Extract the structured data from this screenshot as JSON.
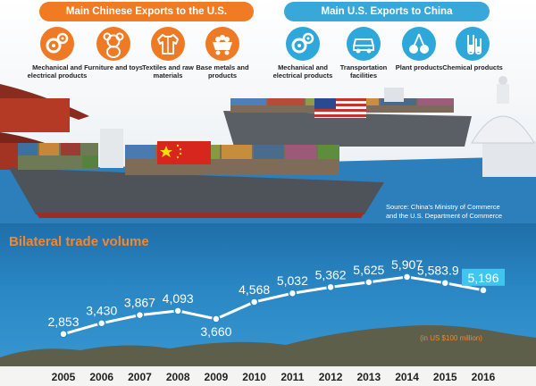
{
  "header": {
    "china_exports_title": "Main Chinese Exports to the U.S.",
    "us_exports_title": "Main U.S. Exports to China"
  },
  "china_exports": [
    {
      "label": "Mechanical and electrical products",
      "icon": "gears-icon"
    },
    {
      "label": "Furniture and toys",
      "icon": "teddy-bear-icon"
    },
    {
      "label": "Textiles and raw materials",
      "icon": "shirt-icon"
    },
    {
      "label": "Base metals and products",
      "icon": "ore-cart-icon"
    }
  ],
  "us_exports": [
    {
      "label": "Mechanical and electrical products",
      "icon": "gears-icon"
    },
    {
      "label": "Transportation facilities",
      "icon": "car-icon"
    },
    {
      "label": "Plant products",
      "icon": "cherries-icon"
    },
    {
      "label": "Chemical products",
      "icon": "test-tubes-icon"
    }
  ],
  "source": {
    "line1": "Source: China's Ministry of Commerce",
    "line2": "and the U.S. Department of Commerce"
  },
  "colors": {
    "china_accent": "#f07b22",
    "us_accent": "#38a8d8",
    "panel": "#2a87c4",
    "title": "#f7852b",
    "line": "#ffffff",
    "highlight": "#3fc6f0"
  },
  "chart_data": {
    "type": "line",
    "title": "Bilateral trade volume",
    "unit_note": "(in US $100 million)",
    "categories": [
      "2005",
      "2006",
      "2007",
      "2008",
      "2009",
      "2010",
      "2011",
      "2012",
      "2013",
      "2014",
      "2015",
      "2016"
    ],
    "data_labels": [
      "2,853",
      "3,430",
      "3,867",
      "4,093",
      "3,660",
      "4,568",
      "5,032",
      "5,362",
      "5,625",
      "5,907",
      "5,583.9",
      "5,196"
    ],
    "series": [
      {
        "values": [
          2853,
          3430,
          3867,
          4093,
          3660,
          4568,
          5032,
          5362,
          5625,
          5907,
          5583.9,
          5196
        ]
      }
    ],
    "highlight_index": 11,
    "ylim": [
      2700,
      6000
    ],
    "grid": false
  }
}
